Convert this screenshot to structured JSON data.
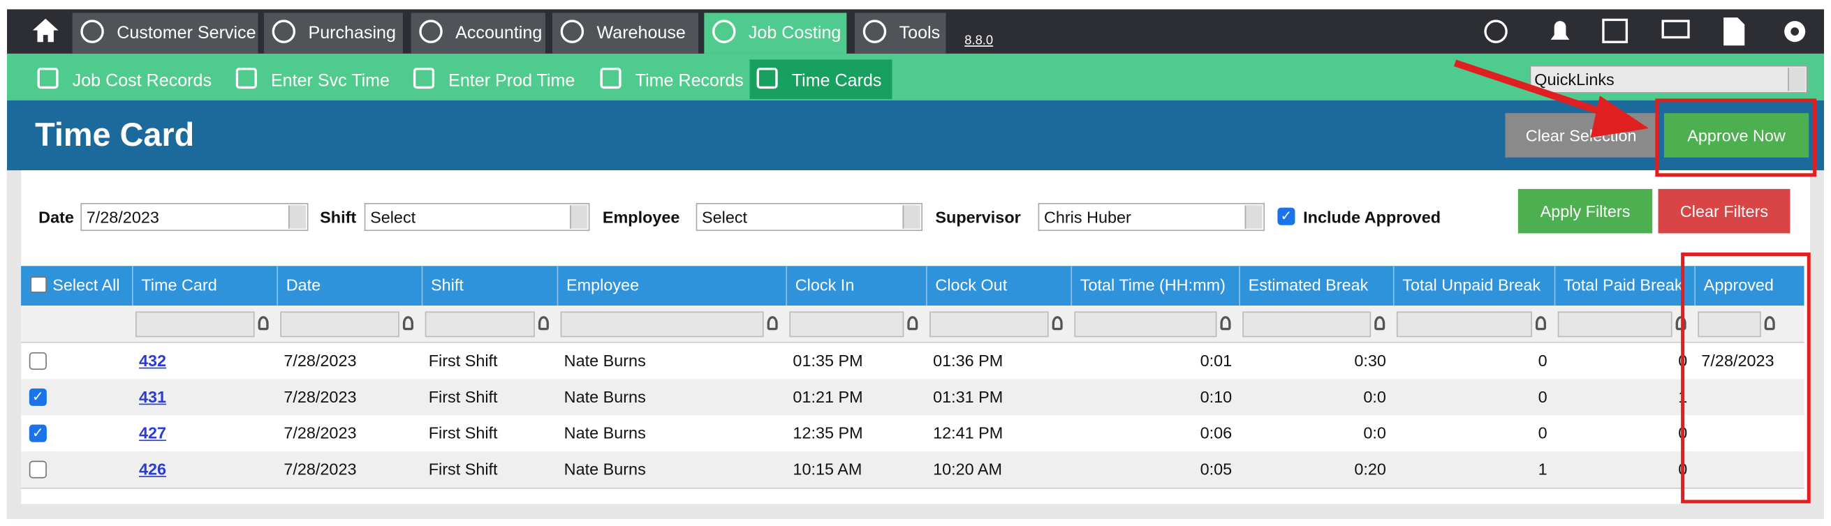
{
  "top_nav": {
    "tabs": [
      "Customer Service",
      "Purchasing",
      "Accounting",
      "Warehouse",
      "Job Costing",
      "Tools"
    ],
    "active_tab": 4,
    "version": "8.8.0"
  },
  "sub_nav": {
    "tabs": [
      "Job Cost Records",
      "Enter Svc Time",
      "Enter Prod Time",
      "Time Records",
      "Time Cards"
    ],
    "active_tab": 4,
    "quicklinks": "QuickLinks"
  },
  "header": {
    "title": "Time Card",
    "clear_selection": "Clear Selection",
    "approve_now": "Approve Now"
  },
  "filters": {
    "date_label": "Date",
    "date": "7/28/2023",
    "shift_label": "Shift",
    "shift": "Select",
    "employee_label": "Employee",
    "employee": "Select",
    "supervisor_label": "Supervisor",
    "supervisor": "Chris Huber",
    "include_approved": "Include Approved",
    "include_approved_checked": true,
    "apply": "Apply Filters",
    "clear": "Clear Filters"
  },
  "table": {
    "select_all": "Select All",
    "columns": [
      "Time Card",
      "Date",
      "Shift",
      "Employee",
      "Clock In",
      "Clock Out",
      "Total Time (HH:mm)",
      "Estimated Break",
      "Total Unpaid Break",
      "Total Paid Break",
      "Approved"
    ],
    "rows": [
      {
        "checked": false,
        "cells": [
          "432",
          "7/28/2023",
          "First Shift",
          "Nate Burns",
          "01:35 PM",
          "01:36 PM",
          "0:01",
          "0:30",
          "0",
          "0",
          "7/28/2023"
        ]
      },
      {
        "checked": true,
        "cells": [
          "431",
          "7/28/2023",
          "First Shift",
          "Nate Burns",
          "01:21 PM",
          "01:31 PM",
          "0:10",
          "0:0",
          "0",
          "1",
          ""
        ]
      },
      {
        "checked": true,
        "cells": [
          "427",
          "7/28/2023",
          "First Shift",
          "Nate Burns",
          "12:35 PM",
          "12:41 PM",
          "0:06",
          "0:0",
          "0",
          "0",
          ""
        ]
      },
      {
        "checked": false,
        "cells": [
          "426",
          "7/28/2023",
          "First Shift",
          "Nate Burns",
          "10:15 AM",
          "10:20 AM",
          "0:05",
          "0:20",
          "1",
          "0",
          ""
        ]
      }
    ]
  }
}
